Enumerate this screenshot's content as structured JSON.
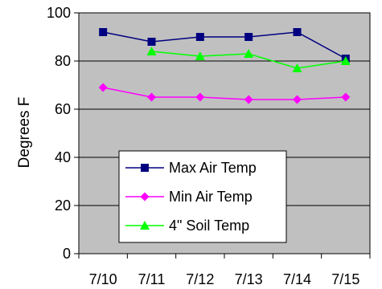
{
  "chart_data": {
    "type": "line",
    "ylabel": "Degrees F",
    "ylim": [
      0,
      100
    ],
    "yticks": [
      0,
      20,
      40,
      60,
      80,
      100
    ],
    "categories": [
      "7/10",
      "7/11",
      "7/12",
      "7/13",
      "7/14",
      "7/15"
    ],
    "grid": "horizontal",
    "plot_background": "#c0c0c0",
    "legend_position": "lower-left inside plot",
    "series": [
      {
        "name": "Max Air Temp",
        "color": "#000080",
        "marker": "square",
        "values": [
          92,
          88,
          90,
          90,
          92,
          81
        ]
      },
      {
        "name": "Min Air Temp",
        "color": "#ff00ff",
        "marker": "diamond",
        "values": [
          69,
          65,
          65,
          64,
          64,
          65
        ]
      },
      {
        "name": "4\" Soil Temp",
        "color": "#00ff00",
        "marker": "triangle",
        "values": [
          null,
          84,
          82,
          83,
          77,
          80
        ]
      }
    ]
  }
}
